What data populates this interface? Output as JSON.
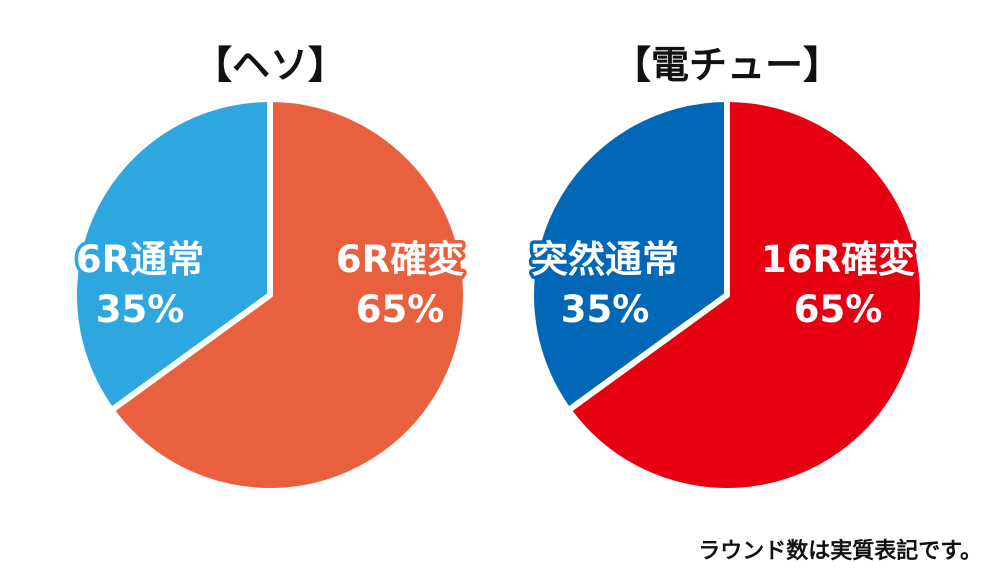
{
  "chart_data": [
    {
      "type": "pie",
      "title": "【ヘソ】",
      "slices": [
        {
          "label_line1": "6R確変",
          "label_line2": "65%",
          "value": 65,
          "color": "#e9603f",
          "outline": "#e9603f"
        },
        {
          "label_line1": "6R通常",
          "label_line2": "35%",
          "value": 35,
          "color": "#2ea7e0",
          "outline": "#2ea7e0"
        }
      ]
    },
    {
      "type": "pie",
      "title": "【電チュー】",
      "slices": [
        {
          "label_line1": "16R確変",
          "label_line2": "65%",
          "value": 65,
          "color": "#e60012",
          "outline": "#e60012"
        },
        {
          "label_line1": "突然通常",
          "label_line2": "35%",
          "value": 35,
          "color": "#0068b7",
          "outline": "#0068b7"
        }
      ]
    }
  ],
  "footnote": "ラウンド数は実質表記です。"
}
